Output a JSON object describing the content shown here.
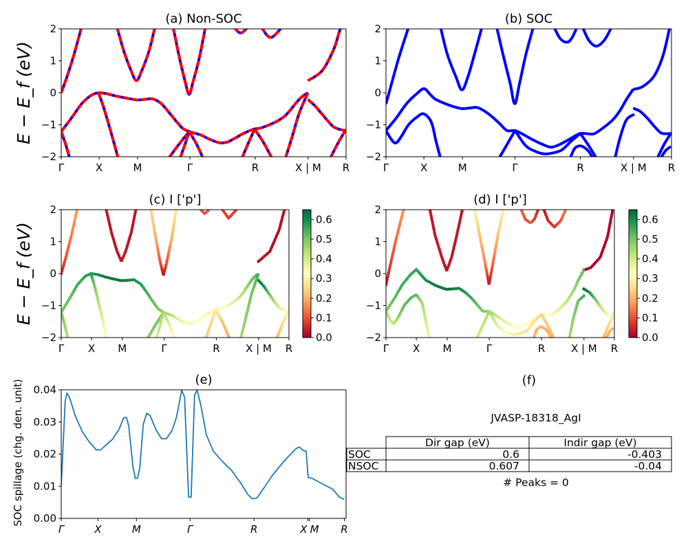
{
  "chart_data": [
    {
      "type": "line",
      "title": "(a) Non-SOC",
      "ylabel": "E − E_f (eV)",
      "ylim": [
        -2,
        2
      ],
      "yticks": [
        "−2",
        "−1",
        "0",
        "1",
        "2"
      ],
      "xtick_positions": [
        0,
        13.3,
        26.8,
        45.2,
        68.1,
        86.7,
        100
      ],
      "xtick_labels": [
        "Γ",
        "X",
        "M",
        "Γ",
        "R",
        "X | M",
        "R"
      ],
      "colors": [
        "#0000ff",
        "#ff0000"
      ],
      "bands": [
        {
          "k": [
            0,
            2,
            4.5,
            7.1
          ],
          "E": [
            0,
            0.5,
            1.2,
            2.05
          ],
          "w": [
            0.05,
            0.1,
            0.15,
            0.18
          ]
        },
        {
          "k": [
            19.6,
            22,
            24.5,
            26.4,
            28.3,
            30.8,
            32.9
          ],
          "E": [
            2.05,
            1.3,
            0.7,
            0.38,
            0.7,
            1.3,
            2.05
          ],
          "w": [
            0.03,
            0.03,
            0.03,
            0.03,
            0.03,
            0.03,
            0.03
          ]
        },
        {
          "k": [
            39.3,
            41.5,
            43.5,
            44.9,
            46.3,
            48.5,
            50.6
          ],
          "E": [
            2.05,
            1.1,
            0.35,
            -0.05,
            0.35,
            1.1,
            2.05
          ],
          "w": [
            0.25,
            0.2,
            0.1,
            0.02,
            0.1,
            0.2,
            0.28
          ]
        },
        {
          "k": [
            60.6,
            63,
            65.5
          ],
          "E": [
            2.05,
            1.87,
            2.05
          ],
          "w": [
            0.1,
            0.1,
            0.1
          ]
        },
        {
          "k": [
            70.3,
            73.5,
            77.5
          ],
          "E": [
            2.05,
            1.73,
            2.05
          ],
          "w": [
            0.08,
            0.08,
            0.08
          ]
        },
        {
          "k": [
            86.6,
            91.6,
            95.7,
            98,
            99.2
          ],
          "E": [
            0.38,
            0.69,
            1.37,
            2.0,
            2.05
          ],
          "w": [
            0.02,
            0.02,
            0.02,
            0.02,
            0.02
          ]
        },
        {
          "k": [
            0,
            3.5,
            7.1,
            10.5,
            13.1,
            16,
            19.2,
            22.5,
            26.4,
            29,
            32,
            35,
            37.7,
            40,
            42.5,
            44.9,
            49,
            52,
            55.4,
            58,
            60.2,
            64,
            67.5,
            70,
            73.1,
            76,
            78.7,
            80.8,
            82.8,
            84.8,
            86.6
          ],
          "E": [
            -1.21,
            -0.8,
            -0.35,
            -0.08,
            0,
            -0.03,
            -0.1,
            -0.16,
            -0.22,
            -0.21,
            -0.19,
            -0.33,
            -0.6,
            -0.85,
            -1.1,
            -1.21,
            -1.32,
            -1.45,
            -1.56,
            -1.55,
            -1.46,
            -1.27,
            -1.14,
            -1.1,
            -1.0,
            -0.88,
            -0.71,
            -0.5,
            -0.28,
            -0.1,
            0
          ],
          "w": [
            0.5,
            0.52,
            0.55,
            0.57,
            0.58,
            0.6,
            0.62,
            0.63,
            0.63,
            0.62,
            0.6,
            0.58,
            0.55,
            0.52,
            0.5,
            0.48,
            0.42,
            0.37,
            0.35,
            0.33,
            0.32,
            0.31,
            0.3,
            0.32,
            0.35,
            0.38,
            0.42,
            0.46,
            0.5,
            0.52,
            0.55
          ]
        },
        {
          "k": [
            86.6,
            89,
            91.6,
            94,
            95.7,
            98,
            100
          ],
          "E": [
            -0.21,
            -0.4,
            -0.67,
            -0.92,
            -1.07,
            -1.15,
            -1.18
          ],
          "w": [
            0.63,
            0.6,
            0.5,
            0.43,
            0.38,
            0.34,
            0.32
          ]
        },
        {
          "k": [
            13.1,
            14.5,
            16,
            18,
            20
          ],
          "E": [
            0,
            -0.35,
            -0.78,
            -1.4,
            -2.05
          ],
          "w": [
            0.58,
            0.5,
            0.45,
            0.38,
            0.32
          ]
        },
        {
          "k": [
            0,
            1.5,
            3
          ],
          "E": [
            -1.21,
            -1.6,
            -2.05
          ],
          "w": [
            0.5,
            0.47,
            0.44
          ]
        },
        {
          "k": [
            37.7,
            41,
            44.9
          ],
          "E": [
            -2.05,
            -1.65,
            -1.21
          ],
          "w": [
            0.48,
            0.5,
            0.5
          ]
        },
        {
          "k": [
            41.7,
            43.5,
            44.9
          ],
          "E": [
            -2.05,
            -1.6,
            -1.21
          ],
          "w": [
            0.38,
            0.42,
            0.45
          ]
        },
        {
          "k": [
            44.9,
            47.5,
            49.8
          ],
          "E": [
            -1.21,
            -1.6,
            -2.05
          ],
          "w": [
            0.45,
            0.38,
            0.3
          ]
        },
        {
          "k": [
            63.4,
            65.8,
            67.9
          ],
          "E": [
            -2.05,
            -1.55,
            -1.14
          ],
          "w": [
            0.22,
            0.25,
            0.28
          ]
        },
        {
          "k": [
            67.9,
            71,
            74
          ],
          "E": [
            -1.14,
            -1.55,
            -2.05
          ],
          "w": [
            0.28,
            0.22,
            0.18
          ]
        },
        {
          "k": [
            78.7,
            81,
            83.5,
            86.6
          ],
          "E": [
            -2.05,
            -1.4,
            -0.65,
            0
          ],
          "w": [
            0.45,
            0.48,
            0.5,
            0.55
          ]
        },
        {
          "k": [
            94.4,
            97,
            99.7
          ],
          "E": [
            -2.05,
            -1.6,
            -1.18
          ],
          "w": [
            0.2,
            0.25,
            0.3
          ]
        }
      ]
    },
    {
      "type": "line",
      "title": "(b) SOC",
      "ylim": [
        -2,
        2
      ],
      "yticks": [
        "−2",
        "−1",
        "0",
        "1",
        "2"
      ],
      "xtick_positions": [
        0,
        13.3,
        26.8,
        45.2,
        68.1,
        86.7,
        100
      ],
      "xtick_labels": [
        "Γ",
        "X",
        "M",
        "Γ",
        "R",
        "X | M",
        "R"
      ],
      "colors": [
        "#0000ff"
      ],
      "bands": [
        {
          "k": [
            0,
            2,
            4.5,
            7.9
          ],
          "E": [
            -0.35,
            0.3,
            1.1,
            2.05
          ],
          "w": [
            0.03,
            0.08,
            0.13,
            0.17
          ]
        },
        {
          "k": [
            19.1,
            21.5,
            24.5,
            26.6,
            28.7,
            31,
            33.6
          ],
          "E": [
            2.05,
            1.2,
            0.5,
            0.09,
            0.5,
            1.2,
            2.05
          ],
          "w": [
            0.03,
            0.03,
            0.03,
            0.02,
            0.03,
            0.03,
            0.03
          ]
        },
        {
          "k": [
            38.8,
            41,
            43.5,
            45.1,
            46.8,
            49,
            51.6
          ],
          "E": [
            2.05,
            1.2,
            0.3,
            -0.34,
            0.3,
            1.2,
            2.05
          ],
          "w": [
            0.3,
            0.22,
            0.15,
            0.03,
            0.12,
            0.22,
            0.3
          ]
        },
        {
          "k": [
            58.9,
            61,
            63.3,
            65,
            66.9
          ],
          "E": [
            2.05,
            1.7,
            1.58,
            1.7,
            2.05
          ],
          "w": [
            0.12,
            0.1,
            0.1,
            0.08,
            0.05
          ]
        },
        {
          "k": [
            68.9,
            71,
            73.7,
            76.5,
            79
          ],
          "E": [
            2.05,
            1.65,
            1.46,
            1.65,
            2.05
          ],
          "w": [
            0.02,
            0.05,
            0.07,
            0.1,
            0.15
          ]
        },
        {
          "k": [
            86.6,
            89.8,
            93.8,
            97,
            99.4
          ],
          "E": [
            0.11,
            0.19,
            0.51,
            1.15,
            2.05
          ],
          "w": [
            0.01,
            0.01,
            0.01,
            0.01,
            0.01
          ]
        },
        {
          "k": [
            0,
            3.5,
            7.1,
            10.5,
            13.3,
            15.5,
            17.5,
            22,
            26.3,
            29,
            32,
            35,
            37.6,
            40,
            42.4,
            45.2,
            48,
            51.2,
            54.5,
            57.7,
            60.5,
            63.3,
            65.8,
            68.1,
            70.5,
            72.9,
            76,
            79.4,
            82,
            84.2,
            86.6
          ],
          "E": [
            -1.18,
            -0.8,
            -0.35,
            -0.05,
            0.13,
            -0.05,
            -0.21,
            -0.38,
            -0.49,
            -0.48,
            -0.46,
            -0.6,
            -0.78,
            -0.98,
            -1.18,
            -1.18,
            -1.3,
            -1.46,
            -1.6,
            -1.7,
            -1.63,
            -1.5,
            -1.37,
            -1.27,
            -1.28,
            -1.28,
            -1.1,
            -0.85,
            -0.55,
            -0.21,
            0.11
          ],
          "w": [
            0.5,
            0.52,
            0.55,
            0.56,
            0.57,
            0.58,
            0.6,
            0.62,
            0.64,
            0.63,
            0.61,
            0.58,
            0.55,
            0.52,
            0.5,
            0.48,
            0.42,
            0.38,
            0.35,
            0.33,
            0.32,
            0.31,
            0.3,
            0.3,
            0.32,
            0.34,
            0.38,
            0.42,
            0.46,
            0.5,
            0.52
          ]
        },
        {
          "k": [
            0,
            1.8,
            3.5,
            5.5,
            7.9,
            11,
            13.3,
            15.9,
            17.5,
            19.1
          ],
          "E": [
            -1.18,
            -1.45,
            -1.57,
            -1.35,
            -1.0,
            -0.75,
            -0.66,
            -0.92,
            -1.5,
            -2.05
          ],
          "w": [
            0.45,
            0.42,
            0.42,
            0.48,
            0.52,
            0.53,
            0.53,
            0.45,
            0.4,
            0.35
          ]
        },
        {
          "k": [
            45.2,
            48.8,
            52,
            55.3,
            58.5,
            61.7,
            65,
            68.1
          ],
          "E": [
            -1.18,
            -1.64,
            -1.82,
            -1.91,
            -1.88,
            -1.78,
            -1.5,
            -1.27
          ],
          "w": [
            0.45,
            0.38,
            0.33,
            0.3,
            0.28,
            0.27,
            0.26,
            0.25
          ]
        },
        {
          "k": [
            39.6,
            42.5,
            45.2
          ],
          "E": [
            -2.05,
            -1.6,
            -1.18
          ],
          "w": [
            0.4,
            0.42,
            0.45
          ]
        },
        {
          "k": [
            64.5,
            66,
            67.7,
            69.3,
            70.9,
            72.5
          ],
          "E": [
            -2.05,
            -1.75,
            -1.66,
            -1.7,
            -1.82,
            -2.05
          ],
          "w": [
            0.2,
            0.2,
            0.2,
            0.2,
            0.2,
            0.2
          ]
        },
        {
          "k": [
            68.1,
            71,
            73.7
          ],
          "E": [
            -1.27,
            -1.65,
            -2.05
          ],
          "w": [
            0.25,
            0.22,
            0.2
          ]
        },
        {
          "k": [
            86.6,
            89,
            91.4,
            94,
            96.2,
            98,
            100
          ],
          "E": [
            -0.48,
            -0.58,
            -0.78,
            -1.05,
            -1.25,
            -1.28,
            -1.27
          ],
          "w": [
            0.64,
            0.6,
            0.52,
            0.42,
            0.36,
            0.33,
            0.32
          ]
        },
        {
          "k": [
            80.2,
            82,
            84.2,
            87
          ],
          "E": [
            -2.05,
            -1.4,
            -0.85,
            -0.67
          ],
          "w": [
            0.45,
            0.48,
            0.52,
            0.55
          ]
        },
        {
          "k": [
            95,
            97.5,
            99.8
          ],
          "E": [
            -2.05,
            -1.6,
            -1.27
          ],
          "w": [
            0.2,
            0.25,
            0.3
          ]
        },
        {
          "k": [
            96.2,
            98,
            99.8
          ],
          "E": [
            -2.05,
            -1.8,
            -1.68
          ],
          "w": [
            0.2,
            0.2,
            0.2
          ]
        }
      ]
    },
    {
      "type": "scatter",
      "title": "(c)  I ['p']",
      "ylabel": "E − E_f (eV)",
      "ylim": [
        -2,
        2
      ],
      "yticks": [
        "−2",
        "−1",
        "0",
        "1",
        "2"
      ],
      "xtick_positions": [
        0,
        13.3,
        26.8,
        45.2,
        68.1,
        86.7,
        100
      ],
      "xtick_labels": [
        "Γ",
        "X",
        "M",
        "Γ",
        "R",
        "X | M",
        "R"
      ],
      "bands_of": 0,
      "colormap": "RdYlGn",
      "clim": [
        0,
        0.65
      ],
      "colorbar_ticks": [
        "0.0",
        "0.1",
        "0.2",
        "0.3",
        "0.4",
        "0.5",
        "0.6"
      ]
    },
    {
      "type": "scatter",
      "title": "(d) I ['p']",
      "ylim": [
        -2,
        2
      ],
      "yticks": [
        "−2",
        "−1",
        "0",
        "1",
        "2"
      ],
      "xtick_positions": [
        0,
        13.3,
        26.8,
        45.2,
        68.1,
        86.7,
        100
      ],
      "xtick_labels": [
        "Γ",
        "X",
        "M",
        "Γ",
        "R",
        "X | M",
        "R"
      ],
      "bands_of": 1,
      "colormap": "RdYlGn",
      "clim": [
        0,
        0.65
      ],
      "colorbar_ticks": [
        "0.0",
        "0.1",
        "0.2",
        "0.3",
        "0.4",
        "0.5",
        "0.6"
      ]
    },
    {
      "type": "line",
      "title": "(e)",
      "ylabel": "SOC spillage (chg. den. unit)",
      "ylim": [
        0,
        0.04
      ],
      "yticks": [
        "0.00",
        "0.01",
        "0.02",
        "0.03",
        "0.04"
      ],
      "xtick_positions": [
        0,
        12.9,
        26.4,
        45.2,
        67.7,
        86.6,
        87.1,
        99.4
      ],
      "xtick_labels": [
        "Γ",
        "X",
        "M",
        "Γ",
        "R",
        "X",
        "M",
        "R"
      ],
      "color": "#1f77b4",
      "x": [
        0,
        1.4,
        2,
        3,
        5,
        7.4,
        9.8,
        12.3,
        13.9,
        15.9,
        17.9,
        20.3,
        21.9,
        22.9,
        23.7,
        25.2,
        26,
        26.8,
        27.6,
        28.8,
        30,
        31.2,
        33.2,
        35.2,
        36.9,
        38.9,
        40.5,
        42.3,
        43.3,
        44.7,
        45.6,
        46.8,
        47.7,
        49,
        51,
        53.4,
        56.6,
        59.8,
        63.1,
        65.5,
        67.1,
        68.7,
        71.1,
        74.4,
        78.4,
        82.4,
        83.6,
        84.8,
        86,
        86.7,
        88,
        91.3,
        95.3,
        97.7,
        99.4
      ],
      "y": [
        0.0102,
        0.0366,
        0.039,
        0.0374,
        0.0317,
        0.027,
        0.0238,
        0.0213,
        0.0213,
        0.023,
        0.0245,
        0.0277,
        0.0313,
        0.0314,
        0.0288,
        0.016,
        0.0125,
        0.0125,
        0.016,
        0.0292,
        0.0327,
        0.032,
        0.0277,
        0.0248,
        0.0248,
        0.0273,
        0.0316,
        0.0399,
        0.0377,
        0.0066,
        0.0066,
        0.0384,
        0.0399,
        0.0352,
        0.0259,
        0.0209,
        0.0177,
        0.0149,
        0.0109,
        0.0074,
        0.0061,
        0.0063,
        0.0094,
        0.0137,
        0.018,
        0.0217,
        0.0222,
        0.0212,
        0.0209,
        0.0127,
        0.0125,
        0.0109,
        0.0091,
        0.0066,
        0.0059
      ]
    },
    {
      "type": "table",
      "title": "(f)",
      "subtitle": "JVASP-18318_AgI",
      "columns": [
        "Dir gap (eV)",
        "Indir gap (eV)"
      ],
      "rows": [
        {
          "label": "SOC",
          "values": [
            "0.6",
            "-0.403"
          ]
        },
        {
          "label": "NSOC",
          "values": [
            "0.607",
            "-0.04"
          ]
        }
      ],
      "footer": "# Peaks = 0"
    }
  ]
}
